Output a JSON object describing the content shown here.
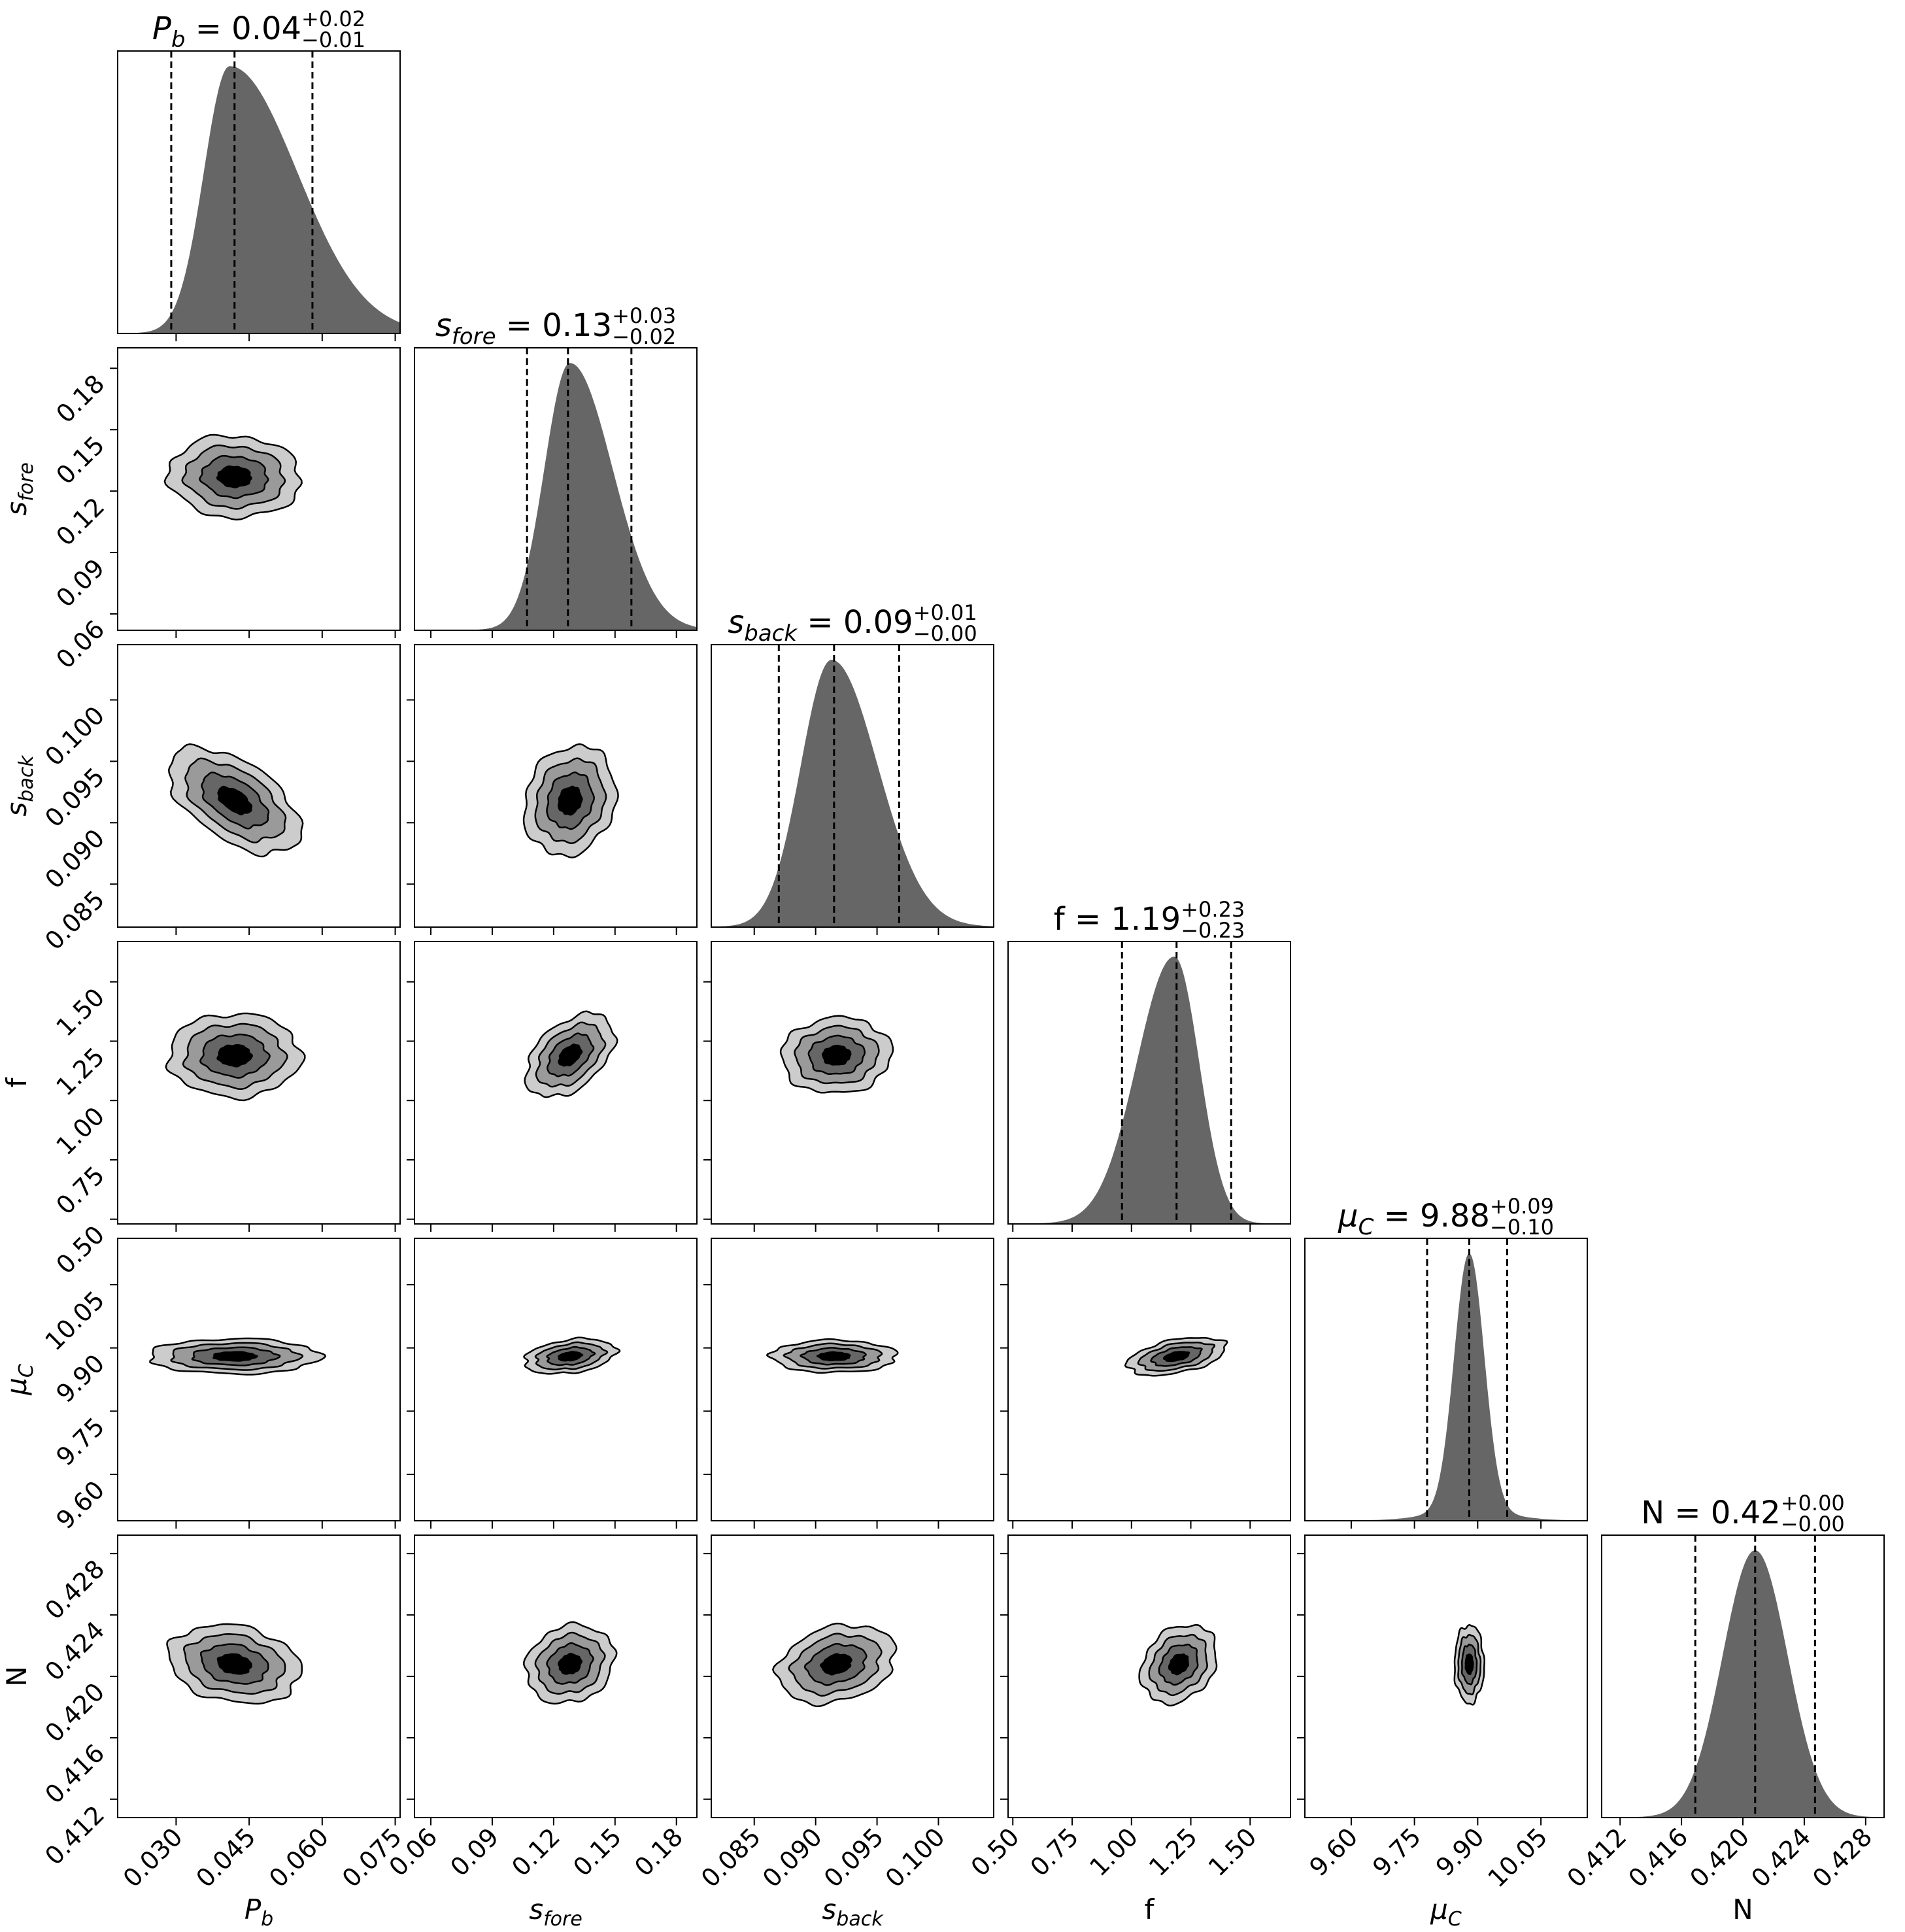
{
  "chart_data": {
    "type": "corner",
    "params": [
      {
        "key": "Pb",
        "label_main": "P",
        "label_sub": "b",
        "label_italic": true,
        "range": [
          0.018,
          0.076
        ],
        "ticks": [
          "0.030",
          "0.045",
          "0.060",
          "0.075"
        ],
        "hist": {
          "mean": 0.041,
          "sigma": 0.0095,
          "skew": 0.45
        },
        "quantiles": [
          0.029,
          0.042,
          0.058
        ],
        "title": {
          "prefix": " = ",
          "value": "0.04",
          "plus": "+0.02",
          "minus": "−0.01"
        }
      },
      {
        "key": "sfore",
        "label_main": "s",
        "label_sub": "fore",
        "label_italic": true,
        "range": [
          0.052,
          0.19
        ],
        "ticks": [
          "0.06",
          "0.09",
          "0.12",
          "0.15",
          "0.18"
        ],
        "hist": {
          "mean": 0.128,
          "sigma": 0.0165,
          "skew": 0.25
        },
        "quantiles": [
          0.107,
          0.127,
          0.158
        ],
        "title": {
          "prefix": " = ",
          "value": "0.13",
          "plus": "+0.03",
          "minus": "−0.02"
        }
      },
      {
        "key": "sback",
        "label_main": "s",
        "label_sub": "back",
        "label_italic": true,
        "range": [
          0.0815,
          0.1045
        ],
        "ticks": [
          "0.085",
          "0.090",
          "0.095",
          "0.100"
        ],
        "hist": {
          "mean": 0.0913,
          "sigma": 0.0031,
          "skew": 0.2
        },
        "quantiles": [
          0.087,
          0.0915,
          0.0968
        ],
        "title": {
          "prefix": " = ",
          "value": "0.09",
          "plus": "+0.01",
          "minus": "−0.00"
        }
      },
      {
        "key": "f",
        "label_main": "f",
        "label_sub": "",
        "label_italic": false,
        "range": [
          0.48,
          1.67
        ],
        "ticks": [
          "0.50",
          "0.75",
          "1.00",
          "1.25",
          "1.50"
        ],
        "hist": {
          "mean": 1.18,
          "sigma": 0.13,
          "skew": -0.2
        },
        "quantiles": [
          0.96,
          1.19,
          1.42
        ],
        "title": {
          "prefix": " = ",
          "value": "1.19",
          "plus": "+0.23",
          "minus": "−0.23"
        }
      },
      {
        "key": "muC",
        "label_main": "μ",
        "label_sub": "C",
        "label_italic": true,
        "range": [
          9.49,
          10.16
        ],
        "ticks": [
          "9.60",
          "9.75",
          "9.90",
          "10.05"
        ],
        "hist": {
          "mean": 9.88,
          "sigma": 0.035,
          "skew": 0.0,
          "tail": 0.09
        },
        "quantiles": [
          9.78,
          9.88,
          9.97
        ],
        "title": {
          "prefix": " = ",
          "value": "9.88",
          "plus": "+0.09",
          "minus": "−0.10"
        }
      },
      {
        "key": "N",
        "label_main": "N",
        "label_sub": "",
        "label_italic": false,
        "range": [
          0.4108,
          0.4292
        ],
        "ticks": [
          "0.412",
          "0.416",
          "0.420",
          "0.424",
          "0.428"
        ],
        "hist": {
          "mean": 0.4208,
          "sigma": 0.0021,
          "skew": 0.0
        },
        "quantiles": [
          0.4169,
          0.4208,
          0.4247
        ],
        "title": {
          "prefix": " = ",
          "value": "0.42",
          "plus": "+0.00",
          "minus": "−0.00"
        }
      }
    ],
    "pairs": [
      {
        "row": 1,
        "col": 0,
        "cx": 0.042,
        "cy": 0.127,
        "sx": 0.0085,
        "sy": 0.0125,
        "rho": -0.05
      },
      {
        "row": 2,
        "col": 0,
        "cx": 0.042,
        "cy": 0.0918,
        "sx": 0.0085,
        "sy": 0.0027,
        "rho": -0.55
      },
      {
        "row": 2,
        "col": 1,
        "cx": 0.128,
        "cy": 0.0918,
        "sx": 0.014,
        "sy": 0.0028,
        "rho": 0.15
      },
      {
        "row": 3,
        "col": 0,
        "cx": 0.042,
        "cy": 1.19,
        "sx": 0.0085,
        "sy": 0.11,
        "rho": 0.0
      },
      {
        "row": 3,
        "col": 1,
        "cx": 0.128,
        "cy": 1.19,
        "sx": 0.0135,
        "sy": 0.11,
        "rho": 0.45
      },
      {
        "row": 3,
        "col": 2,
        "cx": 0.0917,
        "cy": 1.19,
        "sx": 0.0028,
        "sy": 0.1,
        "rho": 0.05
      },
      {
        "row": 4,
        "col": 0,
        "cx": 0.042,
        "cy": 9.88,
        "sx": 0.011,
        "sy": 0.026,
        "rho": 0.0
      },
      {
        "row": 4,
        "col": 1,
        "cx": 0.128,
        "cy": 9.88,
        "sx": 0.014,
        "sy": 0.026,
        "rho": 0.3
      },
      {
        "row": 4,
        "col": 2,
        "cx": 0.0915,
        "cy": 9.88,
        "sx": 0.0032,
        "sy": 0.024,
        "rho": 0.0
      },
      {
        "row": 4,
        "col": 3,
        "cx": 1.19,
        "cy": 9.88,
        "sx": 0.13,
        "sy": 0.028,
        "rho": 0.45
      },
      {
        "row": 5,
        "col": 0,
        "cx": 0.042,
        "cy": 0.4208,
        "sx": 0.0085,
        "sy": 0.0016,
        "rho": -0.2
      },
      {
        "row": 5,
        "col": 1,
        "cx": 0.128,
        "cy": 0.4208,
        "sx": 0.0135,
        "sy": 0.0016,
        "rho": 0.15
      },
      {
        "row": 5,
        "col": 2,
        "cx": 0.0917,
        "cy": 0.4208,
        "sx": 0.003,
        "sy": 0.0016,
        "rho": 0.25
      },
      {
        "row": 5,
        "col": 3,
        "cx": 1.2,
        "cy": 0.4208,
        "sx": 0.1,
        "sy": 0.0016,
        "rho": 0.25
      },
      {
        "row": 5,
        "col": 4,
        "cx": 9.88,
        "cy": 0.4208,
        "sx": 0.022,
        "sy": 0.0016,
        "rho": 0.0
      }
    ],
    "contour_levels": [
      0.4,
      0.8,
      1.2,
      1.6
    ],
    "contour_fills": [
      "#cccccc",
      "#9a9a9a",
      "#666666",
      "#000000"
    ],
    "hist_color": "#666666",
    "dashed_quantiles": true
  }
}
